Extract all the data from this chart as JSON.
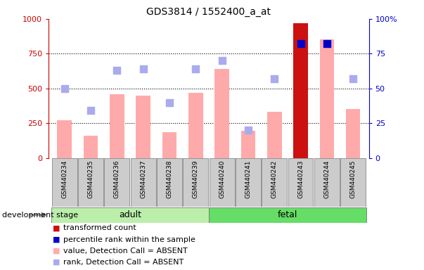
{
  "title": "GDS3814 / 1552400_a_at",
  "samples": [
    "GSM440234",
    "GSM440235",
    "GSM440236",
    "GSM440237",
    "GSM440238",
    "GSM440239",
    "GSM440240",
    "GSM440241",
    "GSM440242",
    "GSM440243",
    "GSM440244",
    "GSM440245"
  ],
  "groups": [
    "adult",
    "adult",
    "adult",
    "adult",
    "adult",
    "adult",
    "fetal",
    "fetal",
    "fetal",
    "fetal",
    "fetal",
    "fetal"
  ],
  "bar_values": [
    270,
    160,
    460,
    450,
    185,
    470,
    640,
    195,
    330,
    970,
    855,
    350
  ],
  "bar_colors": [
    "#ffaaaa",
    "#ffaaaa",
    "#ffaaaa",
    "#ffaaaa",
    "#ffaaaa",
    "#ffaaaa",
    "#ffaaaa",
    "#ffaaaa",
    "#ffaaaa",
    "#cc1111",
    "#ffaaaa",
    "#ffaaaa"
  ],
  "scatter_rank": [
    50,
    34,
    63,
    64,
    40,
    64,
    70,
    20,
    57,
    82,
    82,
    57
  ],
  "scatter_rank_is_absent": [
    true,
    true,
    true,
    true,
    true,
    true,
    true,
    true,
    true,
    false,
    false,
    true
  ],
  "ylim_left": [
    0,
    1000
  ],
  "ylim_right": [
    0,
    100
  ],
  "yticks_left": [
    0,
    250,
    500,
    750,
    1000
  ],
  "yticks_right": [
    0,
    25,
    50,
    75,
    100
  ],
  "adult_label": "adult",
  "fetal_label": "fetal",
  "dev_stage_label": "development stage",
  "adult_color": "#bbeeaa",
  "fetal_color": "#66dd66",
  "group_bg_color": "#cccccc",
  "bar_width": 0.55,
  "scatter_dot_size": 55,
  "absent_rank_color": "#aaaaee",
  "present_rank_color": "#0000cc",
  "legend_labels": [
    "transformed count",
    "percentile rank within the sample",
    "value, Detection Call = ABSENT",
    "rank, Detection Call = ABSENT"
  ],
  "legend_colors": [
    "#cc1111",
    "#0000cc",
    "#ffaaaa",
    "#aaaaee"
  ]
}
